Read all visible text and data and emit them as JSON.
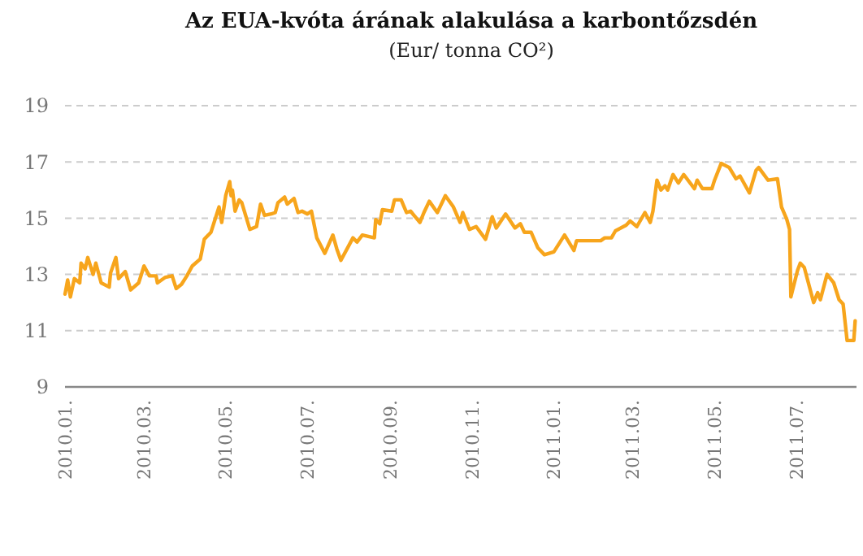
{
  "chart_data": {
    "type": "line",
    "title": "Az EUA-kvóta árának alakulása a karbontőzsdén",
    "subtitle": "(Eur/ tonna CO²)",
    "x": [
      "2010-01-01",
      "2010-01-03",
      "2010-01-05",
      "2010-01-08",
      "2010-01-12",
      "2010-01-13",
      "2010-01-16",
      "2010-01-18",
      "2010-01-22",
      "2010-01-24",
      "2010-01-28",
      "2010-02-03",
      "2010-02-04",
      "2010-02-08",
      "2010-02-10",
      "2010-02-15",
      "2010-02-19",
      "2010-02-25",
      "2010-03-01",
      "2010-03-05",
      "2010-03-10",
      "2010-03-11",
      "2010-03-17",
      "2010-03-22",
      "2010-03-25",
      "2010-03-29",
      "2010-04-02",
      "2010-04-06",
      "2010-04-12",
      "2010-04-15",
      "2010-04-20",
      "2010-04-26",
      "2010-04-28",
      "2010-05-01",
      "2010-05-04",
      "2010-05-05",
      "2010-05-06",
      "2010-05-08",
      "2010-05-11",
      "2010-05-13",
      "2010-05-19",
      "2010-05-24",
      "2010-05-27",
      "2010-05-30",
      "2010-06-04",
      "2010-06-07",
      "2010-06-09",
      "2010-06-14",
      "2010-06-16",
      "2010-06-21",
      "2010-06-24",
      "2010-06-27",
      "2010-07-01",
      "2010-07-04",
      "2010-07-08",
      "2010-07-14",
      "2010-07-20",
      "2010-07-23",
      "2010-07-26",
      "2010-08-04",
      "2010-08-07",
      "2010-08-11",
      "2010-08-20",
      "2010-08-21",
      "2010-08-24",
      "2010-08-26",
      "2010-09-02",
      "2010-09-04",
      "2010-09-09",
      "2010-09-13",
      "2010-09-16",
      "2010-09-23",
      "2010-09-26",
      "2010-09-30",
      "2010-10-06",
      "2010-10-12",
      "2010-10-18",
      "2010-10-23",
      "2010-10-25",
      "2010-10-30",
      "2010-11-04",
      "2010-11-11",
      "2010-11-16",
      "2010-11-19",
      "2010-11-26",
      "2010-12-03",
      "2010-12-07",
      "2010-12-10",
      "2010-12-15",
      "2010-12-20",
      "2010-12-25",
      "2011-01-01",
      "2011-01-09",
      "2011-01-16",
      "2011-01-18",
      "2011-02-05",
      "2011-02-08",
      "2011-02-13",
      "2011-02-16",
      "2011-02-24",
      "2011-02-27",
      "2011-03-04",
      "2011-03-10",
      "2011-03-14",
      "2011-03-16",
      "2011-03-19",
      "2011-03-22",
      "2011-03-25",
      "2011-03-27",
      "2011-03-31",
      "2011-04-04",
      "2011-04-08",
      "2011-04-16",
      "2011-04-18",
      "2011-04-22",
      "2011-04-29",
      "2011-05-01",
      "2011-05-06",
      "2011-05-12",
      "2011-05-17",
      "2011-05-20",
      "2011-05-27",
      "2011-06-01",
      "2011-06-03",
      "2011-06-10",
      "2011-06-17",
      "2011-06-20",
      "2011-06-24",
      "2011-06-26",
      "2011-06-27",
      "2011-07-02",
      "2011-07-04",
      "2011-07-07",
      "2011-07-14",
      "2011-07-17",
      "2011-07-19",
      "2011-07-24",
      "2011-07-29",
      "2011-08-02",
      "2011-08-05",
      "2011-08-08",
      "2011-08-13",
      "2011-08-14"
    ],
    "series": [
      {
        "color": "#f7a51c",
        "values": [
          12.3,
          12.8,
          12.2,
          12.85,
          12.7,
          13.4,
          13.2,
          13.6,
          13.0,
          13.4,
          12.7,
          12.55,
          13.05,
          13.6,
          12.85,
          13.1,
          12.45,
          12.7,
          13.3,
          12.95,
          12.95,
          12.7,
          12.9,
          12.95,
          12.5,
          12.65,
          12.95,
          13.3,
          13.55,
          14.25,
          14.5,
          15.4,
          14.85,
          15.8,
          16.3,
          15.8,
          16.0,
          15.25,
          15.65,
          15.55,
          14.6,
          14.7,
          15.5,
          15.1,
          15.15,
          15.2,
          15.55,
          15.75,
          15.5,
          15.7,
          15.2,
          15.25,
          15.15,
          15.25,
          14.3,
          13.75,
          14.4,
          13.9,
          13.5,
          14.3,
          14.15,
          14.4,
          14.3,
          14.95,
          14.8,
          15.3,
          15.25,
          15.65,
          15.65,
          15.2,
          15.25,
          14.85,
          15.2,
          15.6,
          15.2,
          15.8,
          15.4,
          14.85,
          15.2,
          14.6,
          14.7,
          14.25,
          15.05,
          14.65,
          15.15,
          14.65,
          14.8,
          14.5,
          14.5,
          13.95,
          13.7,
          13.8,
          14.4,
          13.85,
          14.2,
          14.2,
          14.3,
          14.3,
          14.55,
          14.75,
          14.9,
          14.7,
          15.2,
          14.85,
          15.25,
          16.35,
          16.0,
          16.15,
          16.0,
          16.55,
          16.25,
          16.55,
          16.05,
          16.35,
          16.05,
          16.05,
          16.35,
          16.95,
          16.8,
          16.4,
          16.5,
          15.9,
          16.7,
          16.8,
          16.35,
          16.4,
          15.4,
          14.95,
          14.6,
          12.2,
          13.15,
          13.4,
          13.25,
          12.0,
          12.35,
          12.1,
          13.0,
          12.7,
          12.1,
          11.95,
          10.65,
          10.65,
          11.35
        ]
      }
    ],
    "xlim": [
      "2010-01-01",
      "2011-08-15"
    ],
    "xticks": [
      {
        "value": "2010-01-01",
        "label": "2010.01."
      },
      {
        "value": "2010-03-01",
        "label": "2010.03."
      },
      {
        "value": "2010-05-01",
        "label": "2010.05."
      },
      {
        "value": "2010-07-01",
        "label": "2010.07."
      },
      {
        "value": "2010-09-01",
        "label": "2010.09."
      },
      {
        "value": "2010-11-01",
        "label": "2010.11."
      },
      {
        "value": "2011-01-01",
        "label": "2011.01."
      },
      {
        "value": "2011-03-01",
        "label": "2011.03."
      },
      {
        "value": "2011-05-01",
        "label": "2011.05."
      },
      {
        "value": "2011-07-01",
        "label": "2011.07."
      }
    ],
    "ylim": [
      9,
      19
    ],
    "yticks": [
      9,
      11,
      13,
      15,
      17,
      19
    ],
    "grid": "y",
    "marker": "none",
    "line_style": "solid"
  }
}
